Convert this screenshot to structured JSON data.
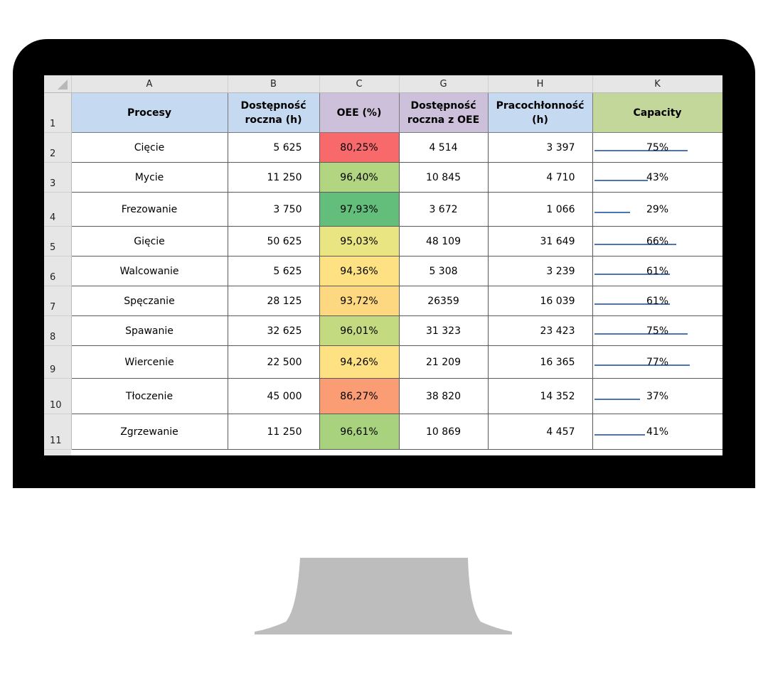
{
  "sheet": {
    "columns": [
      "A",
      "B",
      "C",
      "G",
      "H",
      "K"
    ],
    "row_numbers": [
      "1",
      "2",
      "3",
      "4",
      "5",
      "6",
      "7",
      "8",
      "9",
      "10",
      "11"
    ],
    "header": {
      "procesy": "Procesy",
      "dostepnosc": "Dostępność roczna (h)",
      "oee": "OEE (%)",
      "dostepnosc_oee": "Dostępność roczna z OEE",
      "pracochlonnosc": "Pracochłonność (h)",
      "capacity": "Capacity"
    },
    "header_colors": {
      "procesy": "#c5d9f1",
      "dostepnosc": "#c5d9f1",
      "oee": "#ccc0da",
      "dostepnosc_oee": "#ccc0da",
      "pracochlonnosc": "#c5d9f1",
      "capacity": "#c4d79b"
    },
    "rows": [
      {
        "proces": "Cięcie",
        "dostepnosc": "5 625",
        "oee": "80,25%",
        "oee_color": "#f8696b",
        "dostepnosc_oee": "4 514",
        "pracochlonnosc": "3 397",
        "capacity": "75%",
        "capacity_value": 0.75
      },
      {
        "proces": "Mycie",
        "dostepnosc": "11 250",
        "oee": "96,40%",
        "oee_color": "#b1d580",
        "dostepnosc_oee": "10 845",
        "pracochlonnosc": "4 710",
        "capacity": "43%",
        "capacity_value": 0.43
      },
      {
        "proces": "Frezowanie",
        "dostepnosc": "3 750",
        "oee": "97,93%",
        "oee_color": "#63be7b",
        "dostepnosc_oee": "3 672",
        "pracochlonnosc": "1 066",
        "capacity": "29%",
        "capacity_value": 0.29
      },
      {
        "proces": "Gięcie",
        "dostepnosc": "50 625",
        "oee": "95,03%",
        "oee_color": "#e9e583",
        "dostepnosc_oee": "48 109",
        "pracochlonnosc": "31 649",
        "capacity": "66%",
        "capacity_value": 0.66
      },
      {
        "proces": "Walcowanie",
        "dostepnosc": "5 625",
        "oee": "94,36%",
        "oee_color": "#fee182",
        "dostepnosc_oee": "5 308",
        "pracochlonnosc": "3 239",
        "capacity": "61%",
        "capacity_value": 0.61
      },
      {
        "proces": "Spęczanie",
        "dostepnosc": "28 125",
        "oee": "93,72%",
        "oee_color": "#fed880",
        "dostepnosc_oee": "26359",
        "pracochlonnosc": "16 039",
        "capacity": "61%",
        "capacity_value": 0.61
      },
      {
        "proces": "Spawanie",
        "dostepnosc": "32 625",
        "oee": "96,01%",
        "oee_color": "#c4da80",
        "dostepnosc_oee": "31 323",
        "pracochlonnosc": "23 423",
        "capacity": "75%",
        "capacity_value": 0.75
      },
      {
        "proces": "Wiercenie",
        "dostepnosc": "22 500",
        "oee": "94,26%",
        "oee_color": "#fee182",
        "dostepnosc_oee": "21 209",
        "pracochlonnosc": "16 365",
        "capacity": "77%",
        "capacity_value": 0.77
      },
      {
        "proces": "Tłoczenie",
        "dostepnosc": "45 000",
        "oee": "86,27%",
        "oee_color": "#fa9c74",
        "dostepnosc_oee": "38 820",
        "pracochlonnosc": "14 352",
        "capacity": "37%",
        "capacity_value": 0.37
      },
      {
        "proces": "Zgrzewanie",
        "dostepnosc": "11 250",
        "oee": "96,61%",
        "oee_color": "#a9d27f",
        "dostepnosc_oee": "10 869",
        "pracochlonnosc": "4 457",
        "capacity": "41%",
        "capacity_value": 0.41
      }
    ]
  },
  "colors": {
    "monitor_frame": "#000000",
    "stand": "#bdbdbd",
    "sheet_header_bg": "#e6e6e6",
    "capacity_bar": "#5b87c5"
  }
}
